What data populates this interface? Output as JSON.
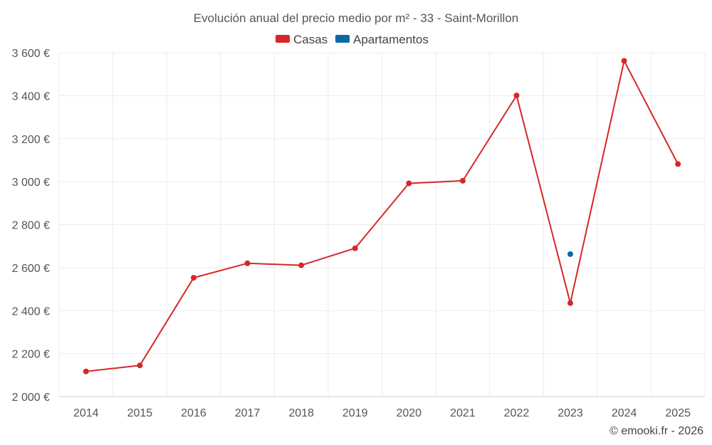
{
  "chart_data": {
    "type": "line",
    "title": "Evolución anual del precio medio por m² - 33 - Saint-Morillon",
    "categories": [
      "2014",
      "2015",
      "2016",
      "2017",
      "2018",
      "2019",
      "2020",
      "2021",
      "2022",
      "2023",
      "2024",
      "2025"
    ],
    "series": [
      {
        "name": "Casas",
        "color": "#d62728",
        "values": [
          2117,
          2145,
          2553,
          2620,
          2611,
          2690,
          2992,
          3004,
          3401,
          2435,
          3562,
          3082
        ]
      },
      {
        "name": "Apartamentos",
        "color": "#0b6aa0",
        "values": [
          null,
          null,
          null,
          null,
          null,
          null,
          null,
          null,
          null,
          2663,
          null,
          null
        ]
      }
    ],
    "ylim": [
      2000,
      3600
    ],
    "yticks": [
      2000,
      2200,
      2400,
      2600,
      2800,
      3000,
      3200,
      3400,
      3600
    ],
    "ytick_labels": [
      "2 000 €",
      "2 200 €",
      "2 400 €",
      "2 600 €",
      "2 800 €",
      "3 000 €",
      "3 200 €",
      "3 400 €",
      "3 600 €"
    ],
    "grid": true,
    "legend_position": "top-center",
    "xlabel": "",
    "ylabel": ""
  },
  "credit": "© emooki.fr - 2026"
}
